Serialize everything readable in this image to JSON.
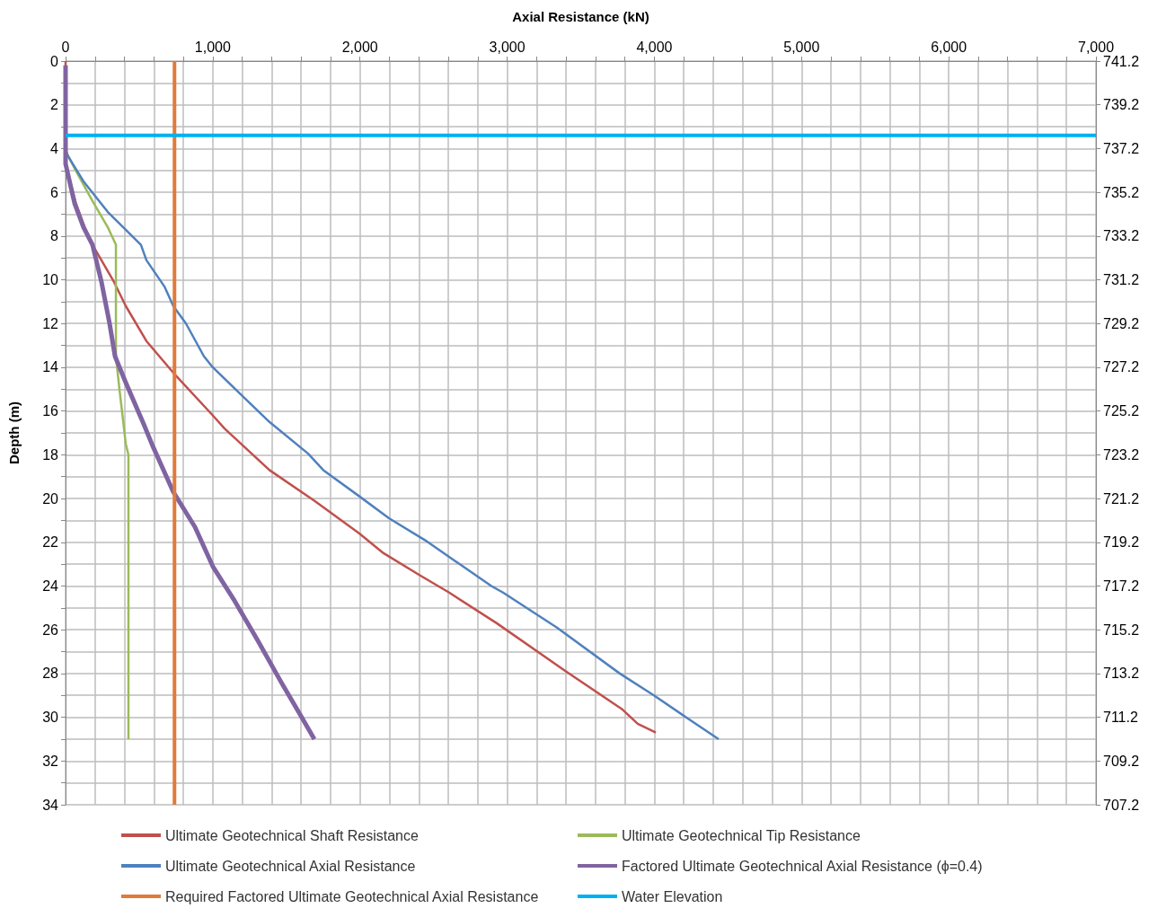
{
  "chart_data": {
    "type": "line",
    "xlabel": "Axial Resistance (kN)",
    "ylabel": "Depth (m)",
    "xlim": [
      0,
      7000
    ],
    "xticks": [
      0,
      {
        "value": 200,
        "label": null
      },
      {
        "value": 400,
        "label": null
      },
      {
        "value": 600,
        "label": null
      },
      {
        "value": 800,
        "label": null
      },
      {
        "value": 1000,
        "label": "1,000"
      },
      {
        "value": 1200,
        "label": null
      },
      {
        "value": 1400,
        "label": null
      },
      {
        "value": 1600,
        "label": null
      },
      {
        "value": 1800,
        "label": null
      },
      {
        "value": 2000,
        "label": "2,000"
      },
      {
        "value": 2200,
        "label": null
      },
      {
        "value": 2400,
        "label": null
      },
      {
        "value": 2600,
        "label": null
      },
      {
        "value": 2800,
        "label": null
      },
      {
        "value": 3000,
        "label": "3,000"
      },
      {
        "value": 3200,
        "label": null
      },
      {
        "value": 3400,
        "label": null
      },
      {
        "value": 3600,
        "label": null
      },
      {
        "value": 3800,
        "label": null
      },
      {
        "value": 4000,
        "label": "4,000"
      },
      {
        "value": 4200,
        "label": null
      },
      {
        "value": 4400,
        "label": null
      },
      {
        "value": 4600,
        "label": null
      },
      {
        "value": 4800,
        "label": null
      },
      {
        "value": 5000,
        "label": "5,000"
      },
      {
        "value": 5200,
        "label": null
      },
      {
        "value": 5400,
        "label": null
      },
      {
        "value": 5600,
        "label": null
      },
      {
        "value": 5800,
        "label": null
      },
      {
        "value": 6000,
        "label": "6,000"
      },
      {
        "value": 6200,
        "label": null
      },
      {
        "value": 6400,
        "label": null
      },
      {
        "value": 6600,
        "label": null
      },
      {
        "value": 6800,
        "label": null
      },
      {
        "value": 7000,
        "label": "7,000"
      }
    ],
    "ylim": [
      34,
      0
    ],
    "yticks": [
      0,
      {
        "value": 1,
        "label": null
      },
      2,
      {
        "value": 3,
        "label": null
      },
      4,
      {
        "value": 5,
        "label": null
      },
      6,
      {
        "value": 7,
        "label": null
      },
      8,
      {
        "value": 9,
        "label": null
      },
      10,
      {
        "value": 11,
        "label": null
      },
      12,
      {
        "value": 13,
        "label": null
      },
      14,
      {
        "value": 15,
        "label": null
      },
      16,
      {
        "value": 17,
        "label": null
      },
      18,
      {
        "value": 19,
        "label": null
      },
      20,
      {
        "value": 21,
        "label": null
      },
      22,
      {
        "value": 23,
        "label": null
      },
      24,
      {
        "value": 25,
        "label": null
      },
      26,
      {
        "value": 27,
        "label": null
      },
      28,
      {
        "value": 29,
        "label": null
      },
      30,
      {
        "value": 31,
        "label": null
      },
      32,
      {
        "value": 33,
        "label": null
      },
      34
    ],
    "y2lim": [
      707.2,
      741.2
    ],
    "y2ticks": [
      741.2,
      739.2,
      737.2,
      735.2,
      733.2,
      731.2,
      729.2,
      727.2,
      725.2,
      723.2,
      721.2,
      719.2,
      717.2,
      715.2,
      713.2,
      711.2,
      709.2,
      707.2
    ],
    "grid": true,
    "legend": "bottom",
    "marker": "none",
    "line_style": "solid",
    "series": [
      {
        "name": "Ultimate Geotechnical Shaft Resistance",
        "color": "#c0504d",
        "x": [
          0,
          0,
          0,
          70,
          130,
          183,
          329,
          409,
          549,
          732,
          1000,
          1080,
          1385,
          1690,
          1996,
          2160,
          2404,
          2606,
          2929,
          3399,
          3784,
          3887,
          4010
        ],
        "values": [
          0,
          4.1,
          4.7,
          6.5,
          7.6,
          8.4,
          10.1,
          11.2,
          12.8,
          14.25,
          16.2,
          16.8,
          18.7,
          20.1,
          21.6,
          22.5,
          23.5,
          24.3,
          25.7,
          27.9,
          29.65,
          30.3,
          30.7
        ]
      },
      {
        "name": "Ultimate Geotechnical Tip Resistance",
        "color": "#9bbb59",
        "x": [
          0,
          61,
          183,
          287,
          342,
          342,
          366,
          409,
          427,
          427
        ],
        "values": [
          4.1,
          4.9,
          6.4,
          7.6,
          8.4,
          13.5,
          15.0,
          17.5,
          18.0,
          31.0
        ]
      },
      {
        "name": "Ultimate Geotechnical Axial Resistance",
        "color": "#4f81bd",
        "x": [
          0,
          12,
          122,
          287,
          512,
          549,
          671,
          732,
          818,
          940,
          1000,
          1184,
          1385,
          1648,
          1751,
          1996,
          2197,
          2441,
          2893,
          2972,
          3338,
          3765,
          3997,
          4193,
          4437
        ],
        "values": [
          4.0,
          4.3,
          5.5,
          6.9,
          8.4,
          9.1,
          10.3,
          11.2,
          12.0,
          13.5,
          14.0,
          15.2,
          16.5,
          17.95,
          18.7,
          19.9,
          20.9,
          21.9,
          24.0,
          24.3,
          25.9,
          28.0,
          29.0,
          29.9,
          31.0
        ]
      },
      {
        "name": "Factored Ultimate Geotechnical Axial Resistance (ϕ=0.4)",
        "color": "#8064a2",
        "x": [
          0,
          0,
          0,
          61,
          122,
          183,
          244,
          299,
          336,
          409,
          531,
          592,
          732,
          879,
          1000,
          1141,
          1306,
          1465,
          1587,
          1690
        ],
        "values": [
          0.2,
          4.07,
          4.7,
          6.5,
          7.6,
          8.4,
          10.1,
          12.0,
          13.5,
          14.7,
          16.6,
          17.6,
          19.7,
          21.3,
          23.1,
          24.6,
          26.5,
          28.4,
          29.8,
          31.0
        ]
      },
      {
        "name": "Required Factored Ultimate Geotechnical Axial Resistance",
        "color": "#e07b39",
        "x": [
          740,
          740
        ],
        "values": [
          0,
          34
        ]
      },
      {
        "name": "Water Elevation",
        "color": "#00b0f0",
        "x": [
          0,
          7000
        ],
        "values": [
          3.4,
          3.4
        ]
      }
    ]
  }
}
